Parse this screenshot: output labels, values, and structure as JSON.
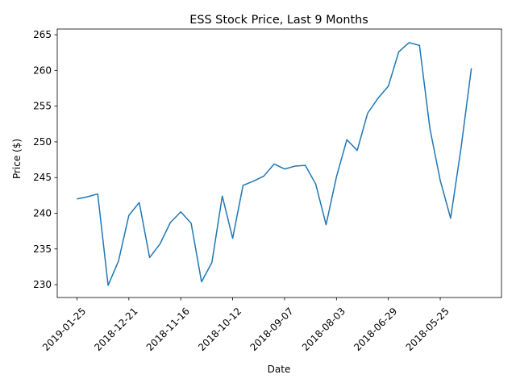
{
  "chart_data": {
    "type": "line",
    "title": "ESS Stock Price, Last 9 Months",
    "xlabel": "Date",
    "ylabel": "Price ($)",
    "x_tick_labels": [
      "2019-01-25",
      "2018-12-21",
      "2018-11-16",
      "2018-10-12",
      "2018-09-07",
      "2018-08-03",
      "2018-06-29",
      "2018-05-25"
    ],
    "x_tick_positions": [
      0,
      5,
      10,
      15,
      20,
      25,
      30,
      35
    ],
    "y_ticks": [
      230,
      235,
      240,
      245,
      250,
      255,
      260,
      265
    ],
    "ylim": [
      228.2,
      265.8
    ],
    "xlim": [
      -1.9,
      40.9
    ],
    "grid": false,
    "series": [
      {
        "color": "#1f77b4",
        "values": [
          242.0,
          242.3,
          242.7,
          229.9,
          233.3,
          239.7,
          241.5,
          233.8,
          235.7,
          238.7,
          240.2,
          238.6,
          230.4,
          233.1,
          242.4,
          236.5,
          243.9,
          244.5,
          245.2,
          246.9,
          246.2,
          246.6,
          246.7,
          244.1,
          238.4,
          245.1,
          250.3,
          248.8,
          254.0,
          256.1,
          257.8,
          262.6,
          263.9,
          263.5,
          251.9,
          244.6,
          239.3,
          249.1,
          260.3
        ]
      }
    ]
  }
}
